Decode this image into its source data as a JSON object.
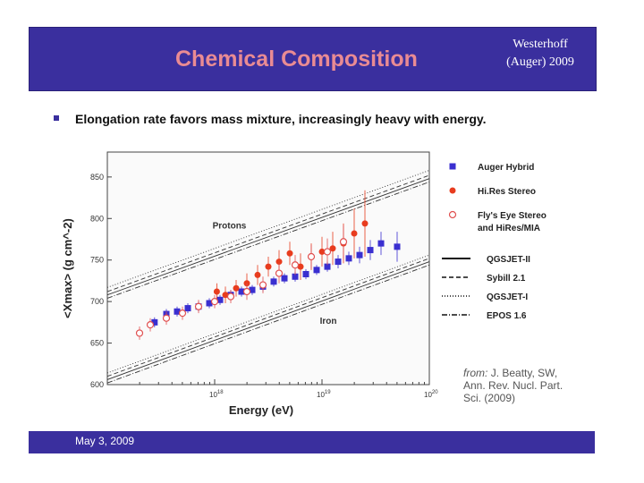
{
  "slide": {
    "title": "Chemical Composition",
    "author_line1": "Westerhoff",
    "author_line2": "(Auger) 2009",
    "bullet": "Elongation rate favors mass mixture, increasingly heavy with energy.",
    "credit_from": "from:",
    "credit_line1": "J. Beatty, SW,",
    "credit_line2": "Ann. Rev. Nucl. Part.",
    "credit_line3": "Sci. (2009)",
    "footer_date": "May 3, 2009"
  },
  "colors": {
    "header_bg": "#3a2f9e",
    "title": "#e98b93",
    "auger": "#3a2fd0",
    "hires": "#e83c1e",
    "flyseye": "#e05050"
  },
  "chart_data": {
    "type": "scatter",
    "title": "",
    "xlabel": "Energy (eV)",
    "ylabel": "<Xmax> (g cm^-2)",
    "xscale": "log10",
    "xlim": [
      17.0,
      20.0
    ],
    "ylim": [
      600,
      880
    ],
    "y_ticks": [
      600,
      650,
      700,
      750,
      800,
      850
    ],
    "x_ticks": [
      {
        "value": 18,
        "base": "10",
        "exp": "18"
      },
      {
        "value": 19,
        "base": "10",
        "exp": "19"
      },
      {
        "value": 20,
        "base": "10",
        "exp": "20"
      }
    ],
    "annotations": [
      {
        "text": "Protons",
        "x": 17.98,
        "y": 788
      },
      {
        "text": "Iron",
        "x": 18.98,
        "y": 673
      }
    ],
    "legend": [
      {
        "label": "Auger Hybrid",
        "marker": "filled-square"
      },
      {
        "label": "Hi.Res Stereo",
        "marker": "filled-circle"
      },
      {
        "label": "Fly's Eye Stereo",
        "label2": "and HiRes/MIA",
        "marker": "open-circle"
      },
      {
        "label": "QGSJET-II",
        "line": "solid"
      },
      {
        "label": "Sybill 2.1",
        "line": "dashed"
      },
      {
        "label": "QGSJET-I",
        "line": "dotted"
      },
      {
        "label": "EPOS 1.6",
        "line": "dashdot"
      }
    ],
    "series": [
      {
        "name": "Auger Hybrid",
        "marker": "filled-square",
        "x": [
          17.44,
          17.55,
          17.65,
          17.75,
          17.85,
          17.95,
          18.05,
          18.15,
          18.25,
          18.35,
          18.45,
          18.55,
          18.65,
          18.75,
          18.85,
          18.95,
          19.05,
          19.15,
          19.25,
          19.35,
          19.45,
          19.55,
          19.7
        ],
        "y": [
          675,
          685,
          688,
          692,
          694,
          698,
          702,
          708,
          712,
          714,
          718,
          724,
          728,
          730,
          733,
          738,
          742,
          748,
          752,
          756,
          762,
          770,
          766
        ],
        "err": [
          6,
          6,
          6,
          6,
          6,
          6,
          6,
          6,
          6,
          6,
          6,
          6,
          6,
          6,
          6,
          6,
          6,
          8,
          8,
          10,
          12,
          14,
          18
        ]
      },
      {
        "name": "HiRes Stereo",
        "marker": "filled-circle",
        "x": [
          18.02,
          18.1,
          18.2,
          18.3,
          18.4,
          18.5,
          18.6,
          18.7,
          18.8,
          18.9,
          19.0,
          19.1,
          19.2,
          19.3,
          19.4
        ],
        "y": [
          712,
          708,
          716,
          722,
          732,
          742,
          748,
          758,
          742,
          754,
          760,
          764,
          770,
          782,
          794
        ],
        "err": [
          10,
          10,
          10,
          12,
          12,
          12,
          14,
          14,
          16,
          16,
          18,
          20,
          24,
          30,
          40
        ]
      },
      {
        "name": "Fly's Eye Stereo and HiRes/MIA",
        "marker": "open-circle",
        "x": [
          17.3,
          17.4,
          17.55,
          17.7,
          17.85,
          18.0,
          18.15,
          18.3,
          18.45,
          18.6,
          18.75,
          18.9,
          19.05,
          19.2
        ],
        "y": [
          662,
          672,
          680,
          686,
          694,
          700,
          706,
          712,
          720,
          734,
          744,
          754,
          760,
          772
        ],
        "err": [
          8,
          8,
          8,
          8,
          8,
          8,
          8,
          10,
          10,
          12,
          12,
          14,
          16,
          20
        ]
      }
    ],
    "model_bands": [
      {
        "group": "Protons",
        "lines": [
          {
            "style": "solid",
            "x": [
              17.0,
              20.0
            ],
            "y": [
              708,
              848
            ]
          },
          {
            "style": "dashed",
            "x": [
              17.0,
              20.0
            ],
            "y": [
              712,
              852
            ]
          },
          {
            "style": "dotted",
            "x": [
              17.0,
              20.0
            ],
            "y": [
              717,
              858
            ]
          },
          {
            "style": "dashdot",
            "x": [
              17.0,
              20.0
            ],
            "y": [
              704,
              844
            ]
          }
        ]
      },
      {
        "group": "Iron",
        "lines": [
          {
            "style": "solid",
            "x": [
              17.0,
              20.0
            ],
            "y": [
              606,
              748
            ]
          },
          {
            "style": "dashed",
            "x": [
              17.0,
              20.0
            ],
            "y": [
              610,
              752
            ]
          },
          {
            "style": "dotted",
            "x": [
              17.0,
              20.0
            ],
            "y": [
              614,
              756
            ]
          },
          {
            "style": "dashdot",
            "x": [
              17.0,
              20.0
            ],
            "y": [
              602,
              744
            ]
          }
        ]
      }
    ]
  }
}
